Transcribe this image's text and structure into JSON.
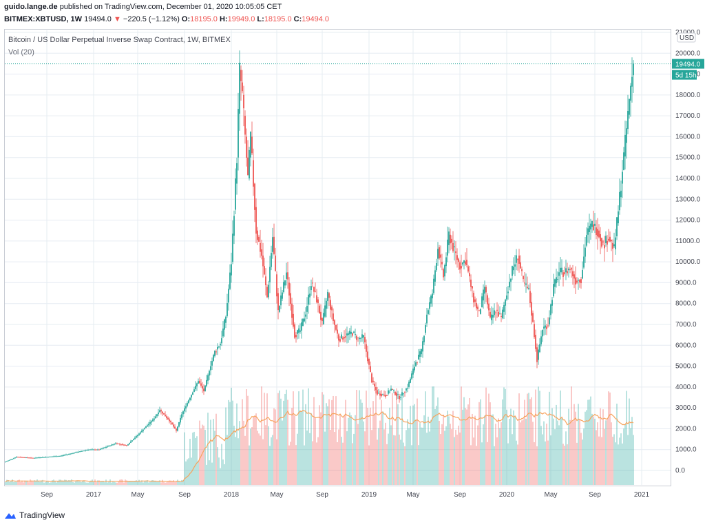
{
  "header": {
    "publisher": "guido.lange.de",
    "published_text": "published on TradingView.com, December 01, 2020 10:05:05 CET",
    "symbol": "BITMEX:XBTUSD, 1W",
    "last": "19494.0",
    "change": "−220.5 (−1.12%)",
    "o_label": "O:",
    "o": "18195.0",
    "h_label": "H:",
    "h": "19949.0",
    "l_label": "L:",
    "l": "18195.0",
    "c_label": "C:",
    "c": "19494.0"
  },
  "legend": {
    "title": "Bitcoin / US Dollar Perpetual Inverse Swap Contract, 1W, BITMEX",
    "volume": "Vol (20)"
  },
  "price_axis": {
    "currency": "USD",
    "last_price_label": "19494.0",
    "countdown_label": "5d 15h",
    "labels": [
      "21000.0",
      "20000.0",
      "19000.0",
      "18000.0",
      "17000.0",
      "16000.0",
      "15000.0",
      "14000.0",
      "13000.0",
      "12000.0",
      "11000.0",
      "10000.0",
      "9000.0",
      "8000.0",
      "7000.0",
      "6000.0",
      "5000.0",
      "4000.0",
      "3000.0",
      "2000.0",
      "1000.0",
      "0.0"
    ]
  },
  "footer": {
    "brand": "TradingView"
  },
  "colors": {
    "up": "#26a69a",
    "down": "#ef5350",
    "ma": "#f7a35c",
    "last_line": "#26a69a",
    "grid": "#e6ecf2"
  },
  "chart_data": {
    "type": "candlestick",
    "x_ticks": [
      "Sep",
      "2017",
      "May",
      "Sep",
      "2018",
      "May",
      "Sep",
      "2019",
      "May",
      "Sep",
      "2020",
      "May",
      "Sep",
      "2021"
    ],
    "ylim": [
      0,
      21000
    ],
    "grid": true,
    "series": [
      {
        "name": "BITMEX:XBTUSD, 1W",
        "control_points": [
          [
            0,
            420
          ],
          [
            8,
            650
          ],
          [
            20,
            600
          ],
          [
            40,
            700
          ],
          [
            60,
            1000
          ],
          [
            68,
            1000
          ],
          [
            80,
            1300
          ],
          [
            88,
            1200
          ],
          [
            96,
            1700
          ],
          [
            108,
            2500
          ],
          [
            112,
            2900
          ],
          [
            120,
            2300
          ],
          [
            124,
            1900
          ],
          [
            128,
            2700
          ],
          [
            140,
            4300
          ],
          [
            144,
            3800
          ],
          [
            148,
            4800
          ],
          [
            152,
            5700
          ],
          [
            156,
            6100
          ],
          [
            160,
            7400
          ],
          [
            164,
            10000
          ],
          [
            168,
            15000
          ],
          [
            170,
            19200
          ],
          [
            172,
            18000
          ],
          [
            176,
            14000
          ],
          [
            178,
            16000
          ],
          [
            182,
            11500
          ],
          [
            186,
            10300
          ],
          [
            190,
            8300
          ],
          [
            194,
            11200
          ],
          [
            198,
            7600
          ],
          [
            204,
            9500
          ],
          [
            210,
            6500
          ],
          [
            214,
            6700
          ],
          [
            218,
            7600
          ],
          [
            222,
            9000
          ],
          [
            226,
            8200
          ],
          [
            230,
            7000
          ],
          [
            234,
            8500
          ],
          [
            238,
            7200
          ],
          [
            242,
            6300
          ],
          [
            248,
            6500
          ],
          [
            252,
            6600
          ],
          [
            256,
            6300
          ],
          [
            260,
            6400
          ],
          [
            266,
            4300
          ],
          [
            270,
            3700
          ],
          [
            276,
            3600
          ],
          [
            280,
            3900
          ],
          [
            286,
            3500
          ],
          [
            292,
            4000
          ],
          [
            298,
            5200
          ],
          [
            302,
            5700
          ],
          [
            306,
            7500
          ],
          [
            310,
            8500
          ],
          [
            314,
            10700
          ],
          [
            318,
            9300
          ],
          [
            322,
            11300
          ],
          [
            326,
            10500
          ],
          [
            330,
            9800
          ],
          [
            334,
            10100
          ],
          [
            340,
            8200
          ],
          [
            344,
            7500
          ],
          [
            348,
            8800
          ],
          [
            352,
            7200
          ],
          [
            356,
            7700
          ],
          [
            360,
            7300
          ],
          [
            364,
            8500
          ],
          [
            368,
            9600
          ],
          [
            372,
            10300
          ],
          [
            376,
            9000
          ],
          [
            380,
            8600
          ],
          [
            384,
            6500
          ],
          [
            386,
            5300
          ],
          [
            390,
            6800
          ],
          [
            394,
            7000
          ],
          [
            398,
            8800
          ],
          [
            402,
            9500
          ],
          [
            406,
            9500
          ],
          [
            410,
            9700
          ],
          [
            414,
            9100
          ],
          [
            418,
            9200
          ],
          [
            422,
            11300
          ],
          [
            426,
            11800
          ],
          [
            430,
            11500
          ],
          [
            434,
            10800
          ],
          [
            438,
            11200
          ],
          [
            442,
            10600
          ],
          [
            446,
            13100
          ],
          [
            450,
            15700
          ],
          [
            454,
            18400
          ],
          [
            456,
            19494
          ]
        ]
      }
    ],
    "volume": {
      "name": "Vol (20)"
    }
  }
}
